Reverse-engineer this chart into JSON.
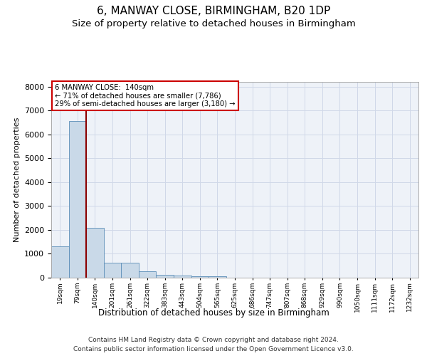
{
  "title": "6, MANWAY CLOSE, BIRMINGHAM, B20 1DP",
  "subtitle": "Size of property relative to detached houses in Birmingham",
  "xlabel": "Distribution of detached houses by size in Birmingham",
  "ylabel": "Number of detached properties",
  "categories": [
    "19sqm",
    "79sqm",
    "140sqm",
    "201sqm",
    "261sqm",
    "322sqm",
    "383sqm",
    "443sqm",
    "504sqm",
    "565sqm",
    "625sqm",
    "686sqm",
    "747sqm",
    "807sqm",
    "868sqm",
    "929sqm",
    "990sqm",
    "1050sqm",
    "1111sqm",
    "1172sqm",
    "1232sqm"
  ],
  "values": [
    1300,
    6550,
    2080,
    640,
    640,
    260,
    130,
    100,
    60,
    60,
    0,
    0,
    0,
    0,
    0,
    0,
    0,
    0,
    0,
    0,
    0
  ],
  "bar_color": "#c9d9e8",
  "bar_edge_color": "#5b8db8",
  "vline_color": "#8b0000",
  "vline_x_index": 2,
  "ylim": [
    0,
    8200
  ],
  "yticks": [
    0,
    1000,
    2000,
    3000,
    4000,
    5000,
    6000,
    7000,
    8000
  ],
  "annotation_text": "6 MANWAY CLOSE:  140sqm\n← 71% of detached houses are smaller (7,786)\n29% of semi-detached houses are larger (3,180) →",
  "annotation_box_color": "#ffffff",
  "annotation_box_edge_color": "#cc0000",
  "grid_color": "#d0d8e8",
  "background_color": "#eef2f8",
  "footnote1": "Contains HM Land Registry data © Crown copyright and database right 2024.",
  "footnote2": "Contains public sector information licensed under the Open Government Licence v3.0.",
  "title_fontsize": 11,
  "subtitle_fontsize": 9.5
}
